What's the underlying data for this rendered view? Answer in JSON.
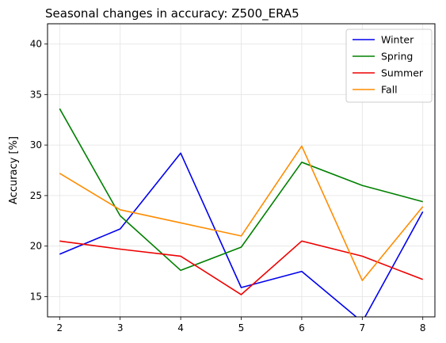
{
  "chart_data": {
    "type": "line",
    "title": "Seasonal changes in accuracy: Z500_ERA5",
    "xlabel": "",
    "ylabel": "Accuracy [%]",
    "x": [
      2,
      3,
      4,
      5,
      6,
      7,
      8
    ],
    "xlim": [
      1.8,
      8.2
    ],
    "ylim": [
      13,
      42
    ],
    "xticks": [
      2,
      3,
      4,
      5,
      6,
      7,
      8
    ],
    "yticks": [
      15,
      20,
      25,
      30,
      35,
      40
    ],
    "grid": true,
    "legend_position": "top-right",
    "series": [
      {
        "name": "Winter",
        "color": "#0000ee",
        "values": [
          19.2,
          21.7,
          29.2,
          15.9,
          17.5,
          12.5,
          23.4
        ]
      },
      {
        "name": "Spring",
        "color": "#008000",
        "values": [
          33.6,
          23.0,
          17.6,
          19.9,
          28.3,
          26.0,
          24.4
        ]
      },
      {
        "name": "Summer",
        "color": "#ee0000",
        "values": [
          20.5,
          19.7,
          19.0,
          15.2,
          20.5,
          19.0,
          16.7
        ]
      },
      {
        "name": "Fall",
        "color": "#ff8c00",
        "values": [
          27.2,
          23.6,
          22.3,
          21.0,
          29.9,
          16.6,
          23.9
        ]
      }
    ]
  }
}
